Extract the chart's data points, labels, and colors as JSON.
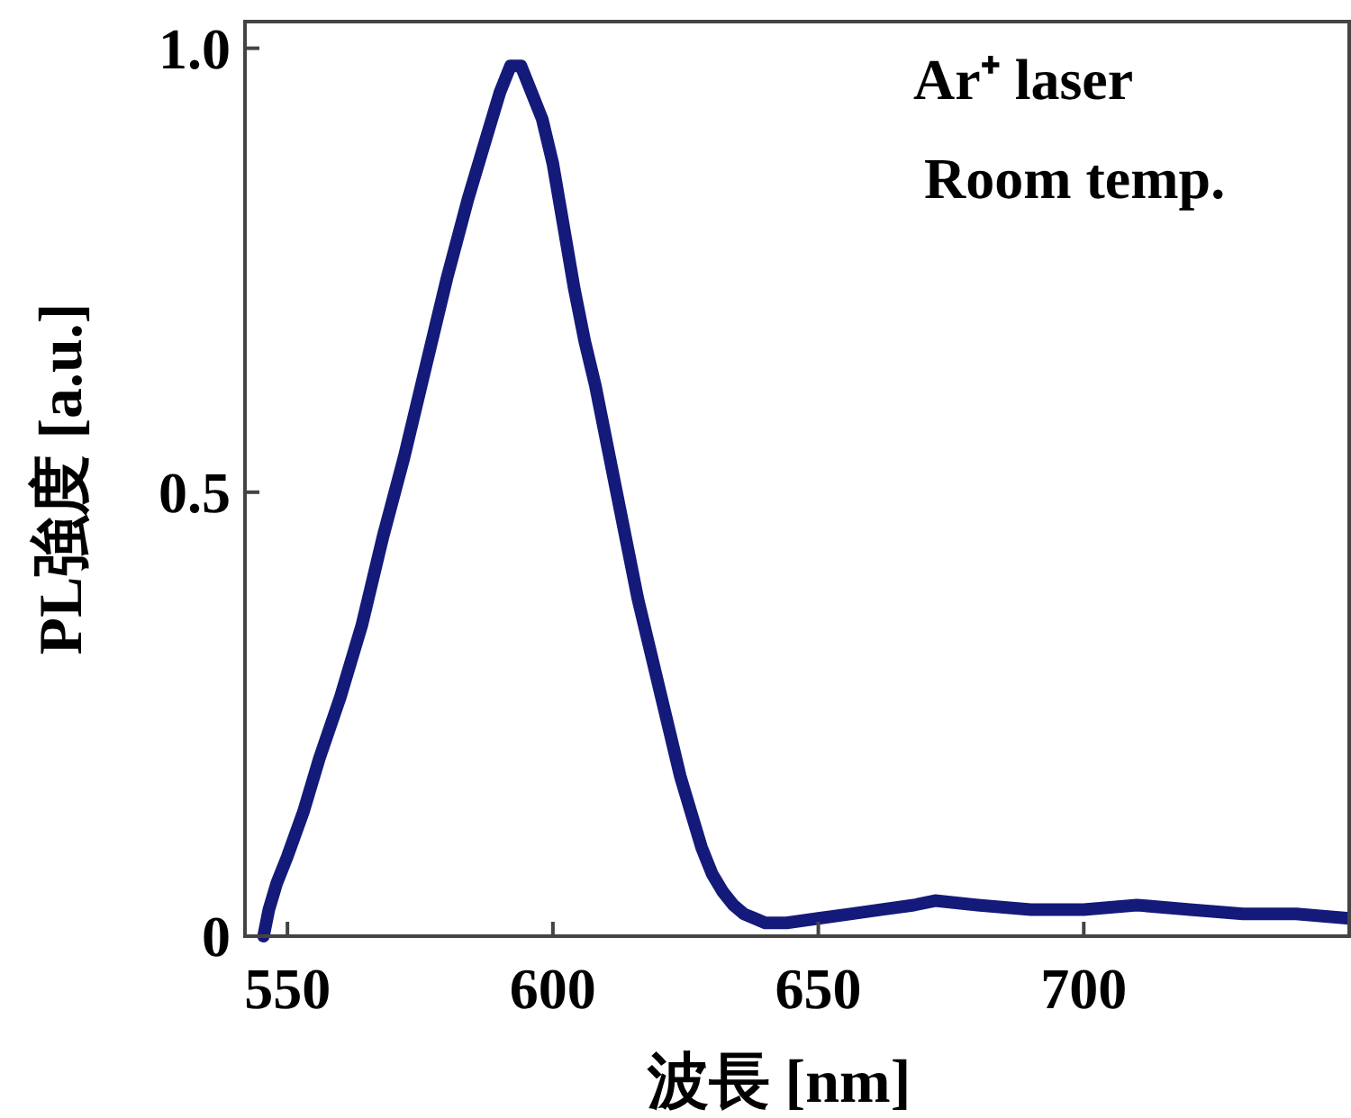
{
  "chart_data": {
    "type": "line",
    "xlabel": "波長 [nm]",
    "ylabel": "PL強度 [a.u.]",
    "annotations": [
      "Ar⁺ laser",
      "Room temp."
    ],
    "xlim": [
      542,
      750
    ],
    "ylim": [
      0,
      1.03
    ],
    "xticks": [
      550,
      600,
      650,
      700
    ],
    "yticks": [
      0,
      {
        "value": 0.5,
        "label": "0.5"
      },
      {
        "value": 1,
        "label": "1.0"
      }
    ],
    "grid": false,
    "line_style": "solid",
    "marker": "none",
    "series": [
      {
        "color": "#141a7a",
        "x": [
          545.5,
          546.5,
          548,
          550,
          553,
          556,
          560,
          564,
          568,
          572,
          576,
          580,
          584,
          588,
          590,
          592,
          594,
          596,
          598,
          600,
          602,
          604,
          606,
          608,
          610,
          612,
          614,
          616,
          618,
          620,
          622,
          624,
          626,
          628,
          630,
          632,
          634,
          636,
          638,
          640,
          644,
          650,
          656,
          662,
          668,
          672,
          680,
          690,
          700,
          710,
          720,
          730,
          740,
          750
        ],
        "values": [
          0.0,
          0.03,
          0.06,
          0.09,
          0.14,
          0.2,
          0.27,
          0.35,
          0.45,
          0.54,
          0.64,
          0.74,
          0.83,
          0.91,
          0.95,
          0.98,
          0.98,
          0.95,
          0.92,
          0.87,
          0.8,
          0.73,
          0.67,
          0.62,
          0.56,
          0.5,
          0.44,
          0.38,
          0.33,
          0.28,
          0.23,
          0.18,
          0.14,
          0.1,
          0.07,
          0.05,
          0.035,
          0.025,
          0.02,
          0.015,
          0.015,
          0.02,
          0.025,
          0.03,
          0.035,
          0.04,
          0.035,
          0.03,
          0.03,
          0.035,
          0.03,
          0.025,
          0.025,
          0.02
        ]
      }
    ]
  }
}
